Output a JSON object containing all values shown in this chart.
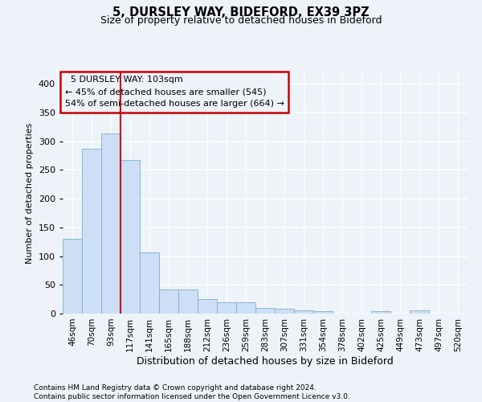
{
  "title1": "5, DURSLEY WAY, BIDEFORD, EX39 3PZ",
  "title2": "Size of property relative to detached houses in Bideford",
  "xlabel": "Distribution of detached houses by size in Bideford",
  "ylabel": "Number of detached properties",
  "footnote": "Contains HM Land Registry data © Crown copyright and database right 2024.\nContains public sector information licensed under the Open Government Licence v3.0.",
  "annotation_line1": "  5 DURSLEY WAY: 103sqm",
  "annotation_line2": "← 45% of detached houses are smaller (545)",
  "annotation_line3": "54% of semi-detached houses are larger (664) →",
  "property_sqm": 103,
  "bar_color": "#ccdff5",
  "bar_edge_color": "#7aafd4",
  "vline_color": "#cc0000",
  "categories": [
    "46sqm",
    "70sqm",
    "93sqm",
    "117sqm",
    "141sqm",
    "165sqm",
    "188sqm",
    "212sqm",
    "236sqm",
    "259sqm",
    "283sqm",
    "307sqm",
    "331sqm",
    "354sqm",
    "378sqm",
    "402sqm",
    "425sqm",
    "449sqm",
    "473sqm",
    "497sqm",
    "520sqm"
  ],
  "values": [
    130,
    287,
    314,
    268,
    107,
    42,
    42,
    25,
    20,
    20,
    10,
    8,
    6,
    4,
    0,
    0,
    4,
    0,
    5,
    0,
    0
  ],
  "ylim": [
    0,
    420
  ],
  "yticks": [
    0,
    50,
    100,
    150,
    200,
    250,
    300,
    350,
    400
  ],
  "background_color": "#eef2f9",
  "grid_color": "#ffffff",
  "vline_x_index": 2
}
